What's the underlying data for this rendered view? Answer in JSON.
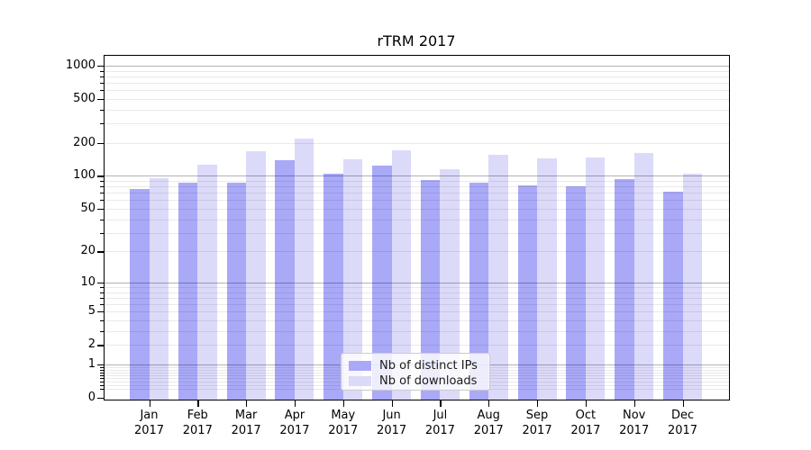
{
  "chart_data": {
    "type": "bar",
    "title": "rTRM 2017",
    "year_label": "2017",
    "months": [
      "Jan",
      "Feb",
      "Mar",
      "Apr",
      "May",
      "Jun",
      "Jul",
      "Aug",
      "Sep",
      "Oct",
      "Nov",
      "Dec"
    ],
    "categories": [
      "Jan 2017",
      "Feb 2017",
      "Mar 2017",
      "Apr 2017",
      "May 2017",
      "Jun 2017",
      "Jul 2017",
      "Aug 2017",
      "Sep 2017",
      "Oct 2017",
      "Nov 2017",
      "Dec 2017"
    ],
    "series": [
      {
        "name": "Nb of distinct IPs",
        "color": "#a9a9f8",
        "values": [
          76,
          87,
          86,
          140,
          105,
          125,
          92,
          86,
          82,
          81,
          94,
          72
        ]
      },
      {
        "name": "Nb of downloads",
        "color": "#dcdaf9",
        "values": [
          96,
          127,
          167,
          218,
          141,
          172,
          115,
          157,
          145,
          147,
          162,
          105
        ]
      }
    ],
    "yscale": "log1p",
    "ytick_values": [
      1000,
      500,
      200,
      100,
      50,
      20,
      10,
      5,
      2,
      1,
      0
    ],
    "ytick_labels": [
      "1000",
      "500",
      "200",
      "100",
      "50",
      "20",
      "10",
      "5",
      "2",
      "1",
      "0"
    ],
    "grid": true,
    "legend_position": "inside lower center",
    "colors": {
      "major_grid": "#b3b3b3",
      "minor_grid": "#e8e8e8",
      "spine": "#000000",
      "background": "#ffffff"
    }
  }
}
